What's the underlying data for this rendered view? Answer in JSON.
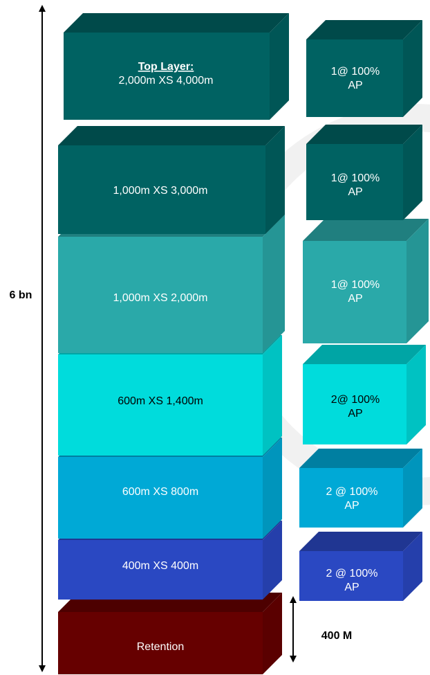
{
  "colors": {
    "top": "#006262",
    "layer_1000_3000": "#006262",
    "layer_1000_2000": "#2aa9a9",
    "layer_600_1400": "#00dcdc",
    "layer_600_800": "#00a9d6",
    "layer_400_400": "#2a48c2",
    "retention": "#660000",
    "watermark": "#d8d8d8"
  },
  "scale_label": "6 bn",
  "retention_label": "400 M",
  "layers": [
    {
      "id": "top",
      "title": "Top Layer:",
      "label": "2,000m XS 4,000m",
      "reinstatement_line1": "1@ 100%",
      "reinstatement_line2": "AP"
    },
    {
      "id": "layer_1000_3000",
      "label": "1,000m XS 3,000m",
      "reinstatement_line1": "1@ 100%",
      "reinstatement_line2": "AP"
    },
    {
      "id": "layer_1000_2000",
      "label": "1,000m XS 2,000m",
      "reinstatement_line1": "1@ 100%",
      "reinstatement_line2": "AP"
    },
    {
      "id": "layer_600_1400",
      "label": "600m XS 1,400m",
      "reinstatement_line1": "2@ 100%",
      "reinstatement_line2": "AP"
    },
    {
      "id": "layer_600_800",
      "label": "600m XS 800m",
      "reinstatement_line1": "2 @ 100%",
      "reinstatement_line2": "AP"
    },
    {
      "id": "layer_400_400",
      "label": "400m XS 400m",
      "reinstatement_line1": "2 @ 100%",
      "reinstatement_line2": "AP"
    },
    {
      "id": "retention",
      "label": "Retention"
    }
  ]
}
